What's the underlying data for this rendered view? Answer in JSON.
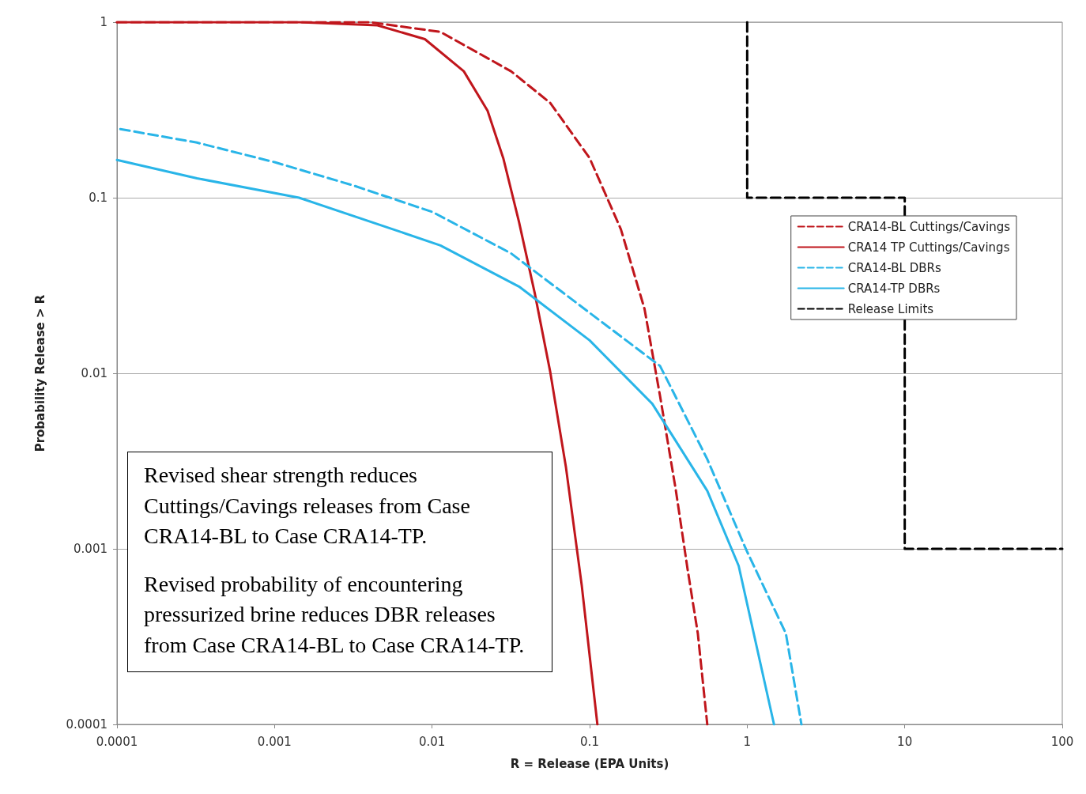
{
  "chart_data": {
    "type": "line",
    "xlabel": "R = Release (EPA Units)",
    "ylabel": "Probability Release > R",
    "log": "xy",
    "xlim": [
      0.0001,
      100
    ],
    "ylim": [
      0.0001,
      1
    ],
    "xticks": [
      0.0001,
      0.001,
      0.01,
      0.1,
      1,
      10,
      100
    ],
    "yticks": [
      0.0001,
      0.001,
      0.01,
      0.1,
      1
    ],
    "grid": "y",
    "legend": "top right",
    "marker": "none",
    "series": [
      {
        "name": "CRA14-BL Cuttings/Cavings",
        "color": "#c0161c",
        "line_style": "dashed",
        "x": [
          0.0001,
          0.004,
          0.0113,
          0.0317,
          0.0562,
          0.1,
          0.158,
          0.223,
          0.28,
          0.353,
          0.419,
          0.486,
          0.558
        ],
        "values": [
          1,
          1,
          0.88,
          0.525,
          0.347,
          0.168,
          0.066,
          0.0233,
          0.0074,
          0.00214,
          0.00076,
          0.00033,
          0.0001
        ]
      },
      {
        "name": "CRA14 TP Cuttings/Cavings",
        "color": "#c0161c",
        "line_style": "solid",
        "x": [
          0.0001,
          0.00143,
          0.0045,
          0.009,
          0.0159,
          0.0225,
          0.0283,
          0.0356,
          0.0448,
          0.0562,
          0.0708,
          0.0891,
          0.112
        ],
        "values": [
          1,
          1,
          0.96,
          0.8,
          0.525,
          0.313,
          0.168,
          0.073,
          0.0287,
          0.0102,
          0.0029,
          0.00062,
          0.0001
        ]
      },
      {
        "name": "CRA14-BL DBRs",
        "color": "#29b5e8",
        "line_style": "dashed",
        "x": [
          0.000105,
          0.000322,
          0.00101,
          0.0032,
          0.0101,
          0.0317,
          0.1,
          0.28,
          0.558,
          0.99,
          1.76,
          2.21
        ],
        "values": [
          0.246,
          0.206,
          0.159,
          0.117,
          0.0828,
          0.0482,
          0.0221,
          0.011,
          0.00324,
          0.00098,
          0.00033,
          0.0001
        ]
      },
      {
        "name": "CRA14-TP DBRs",
        "color": "#29b5e8",
        "line_style": "solid",
        "x": [
          0.0001,
          0.000322,
          0.00143,
          0.00568,
          0.0113,
          0.0356,
          0.1,
          0.25,
          0.558,
          0.883,
          1.48
        ],
        "values": [
          0.164,
          0.129,
          0.1,
          0.066,
          0.0535,
          0.0312,
          0.0154,
          0.0067,
          0.00214,
          0.0008,
          0.0001
        ]
      },
      {
        "name": "Release Limits",
        "color": "#000000",
        "line_style": "dashed",
        "x": [
          1,
          1,
          10,
          10,
          100
        ],
        "values": [
          1,
          0.1,
          0.1,
          0.001,
          0.001
        ]
      }
    ],
    "annotations": [
      "Revised shear strength reduces Cuttings/Cavings releases  from Case CRA14-BL to Case CRA14-TP.",
      "Revised probability of encountering pressurized brine reduces DBR releases from Case CRA14-BL to Case CRA14-TP."
    ]
  }
}
